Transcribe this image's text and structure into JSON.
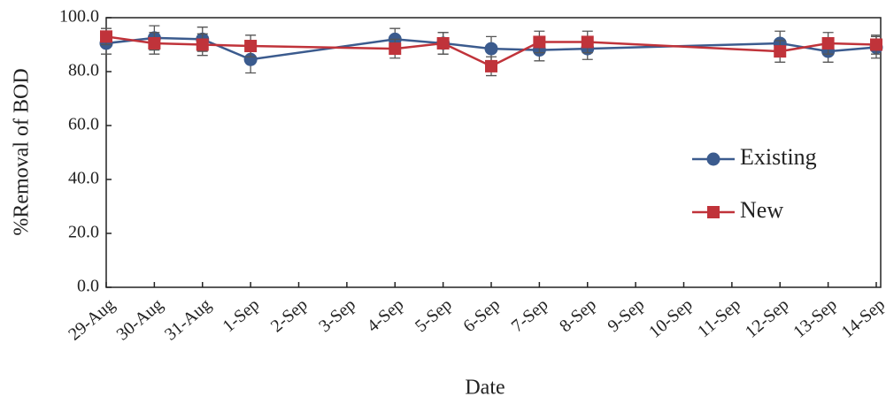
{
  "chart_data": {
    "type": "line",
    "x_label": "Date",
    "y_label": "%Removal of BOD",
    "categories": [
      "29-Aug",
      "30-Aug",
      "31-Aug",
      "1-Sep",
      "2-Sep",
      "3-Sep",
      "4-Sep",
      "5-Sep",
      "6-Sep",
      "7-Sep",
      "8-Sep",
      "9-Sep",
      "10-Sep",
      "11-Sep",
      "12-Sep",
      "13-Sep",
      "14-Sep"
    ],
    "series": [
      {
        "name": "Existing",
        "color": "#3b5b8e",
        "marker": "circle",
        "x": [
          "29-Aug",
          "30-Aug",
          "31-Aug",
          "1-Sep",
          "4-Sep",
          "5-Sep",
          "6-Sep",
          "7-Sep",
          "8-Sep",
          "12-Sep",
          "13-Sep",
          "14-Sep"
        ],
        "values": [
          90.5,
          92.5,
          92,
          84.5,
          92,
          90.5,
          88.5,
          88,
          88.5,
          90.5,
          87.5,
          89
        ],
        "errors": [
          4,
          4.5,
          4.5,
          5,
          4,
          4,
          4.5,
          4,
          4,
          4.5,
          4,
          4
        ]
      },
      {
        "name": "New",
        "color": "#c0333a",
        "marker": "square",
        "x": [
          "29-Aug",
          "30-Aug",
          "31-Aug",
          "1-Sep",
          "4-Sep",
          "5-Sep",
          "6-Sep",
          "7-Sep",
          "8-Sep",
          "12-Sep",
          "13-Sep",
          "14-Sep"
        ],
        "values": [
          93,
          90.5,
          90,
          89.5,
          88.5,
          90.5,
          82,
          91,
          91,
          87.5,
          90.5,
          90
        ],
        "errors": [
          3,
          4,
          4,
          4,
          3.5,
          4,
          3.5,
          4,
          4,
          4,
          4,
          3.5
        ]
      }
    ],
    "ylim": [
      0,
      100
    ],
    "yticks": [
      {
        "value": 0,
        "label": "0.0"
      },
      {
        "value": 20,
        "label": "20.0"
      },
      {
        "value": 40,
        "label": "40.0"
      },
      {
        "value": 60,
        "label": "60.0"
      },
      {
        "value": 80,
        "label": "80.0"
      },
      {
        "value": 100,
        "label": "100.0"
      }
    ],
    "grid": false,
    "legend": "right"
  }
}
